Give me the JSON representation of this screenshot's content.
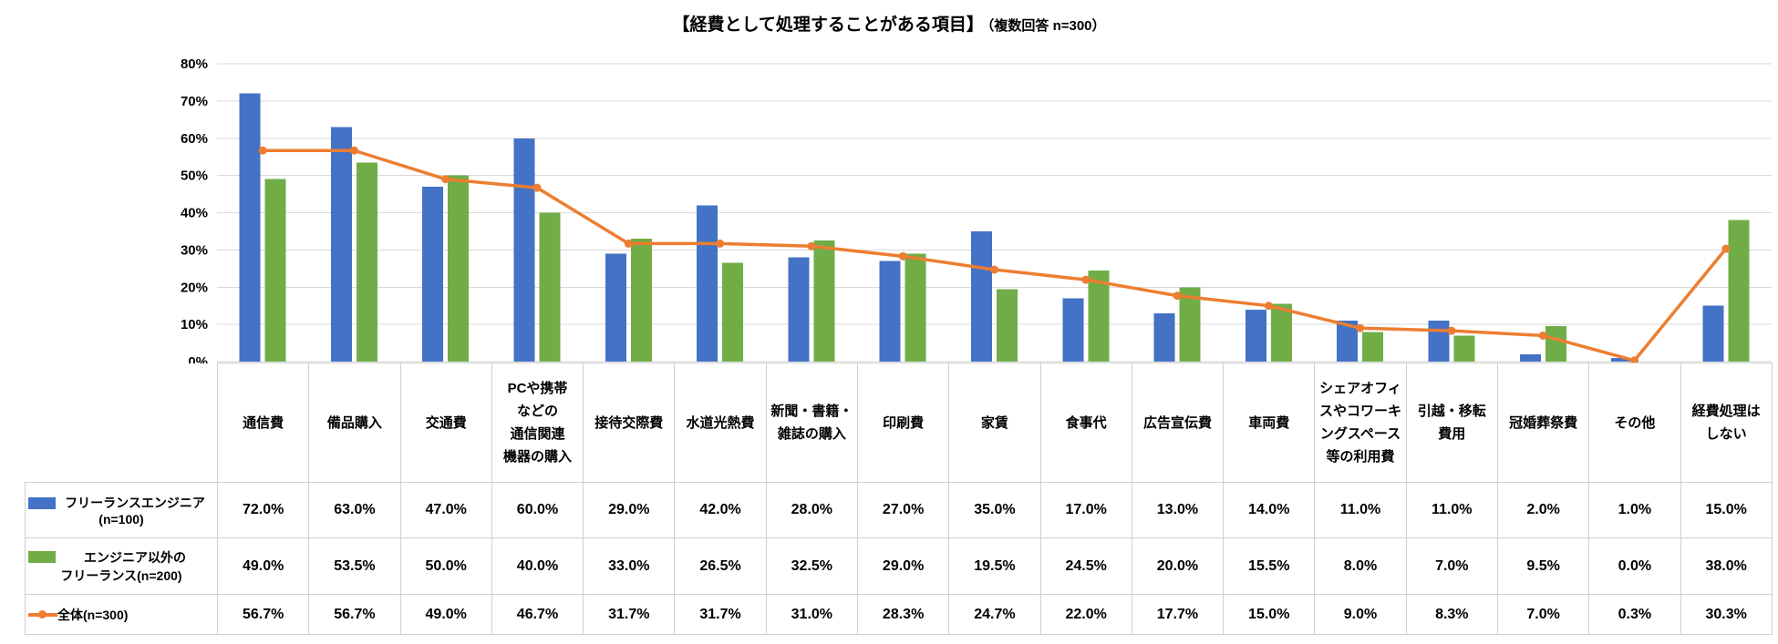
{
  "title": {
    "main": "【経費として処理することがある項目】",
    "note": "（複数回答 n=300）"
  },
  "colors": {
    "series1_blue": "#4472C4",
    "series2_green": "#70AD47",
    "series3_orange": "#ED7D31",
    "gridline": "#D9D9D9",
    "table_border": "#CFCFCF",
    "text": "#000000"
  },
  "chart_data": {
    "type": "bar",
    "subtype": "grouped bars with line overlay (combo)",
    "title": "【経費として処理することがある項目】（複数回答 n=300）",
    "xlabel": "",
    "ylabel": "",
    "ylim": [
      0,
      80
    ],
    "y_ticks": [
      "0%",
      "10%",
      "20%",
      "30%",
      "40%",
      "50%",
      "60%",
      "70%",
      "80%"
    ],
    "grid": true,
    "legend_position": "data-table-left-column",
    "categories": [
      "通信費",
      "備品購入",
      "交通費",
      "PCや携帯\nなどの\n通信関連\n機器の購入",
      "接待交際費",
      "水道光熱費",
      "新聞・書籍・\n雑誌の購入",
      "印刷費",
      "家賃",
      "食事代",
      "広告宣伝費",
      "車両費",
      "シェアオフィ\nスやコワーキ\nングスペース\n等の利用費",
      "引越・移転\n費用",
      "冠婚葬祭費",
      "その他",
      "経費処理は\nしない"
    ],
    "series": [
      {
        "name": "フリーランスエンジニア\n(n=100)",
        "type": "bar",
        "color": "#4472C4",
        "values": [
          72.0,
          63.0,
          47.0,
          60.0,
          29.0,
          42.0,
          28.0,
          27.0,
          35.0,
          17.0,
          13.0,
          14.0,
          11.0,
          11.0,
          2.0,
          1.0,
          15.0
        ]
      },
      {
        "name": "エンジニア以外の\nフリーランス(n=200)",
        "type": "bar",
        "color": "#70AD47",
        "values": [
          49.0,
          53.5,
          50.0,
          40.0,
          33.0,
          26.5,
          32.5,
          29.0,
          19.5,
          24.5,
          20.0,
          15.5,
          8.0,
          7.0,
          9.5,
          0.0,
          38.0
        ]
      },
      {
        "name": "全体(n=300)",
        "type": "line",
        "color": "#ED7D31",
        "values": [
          56.7,
          56.7,
          49.0,
          46.7,
          31.7,
          31.7,
          31.0,
          28.3,
          24.7,
          22.0,
          17.7,
          15.0,
          9.0,
          8.3,
          7.0,
          0.3,
          30.3
        ]
      }
    ]
  }
}
